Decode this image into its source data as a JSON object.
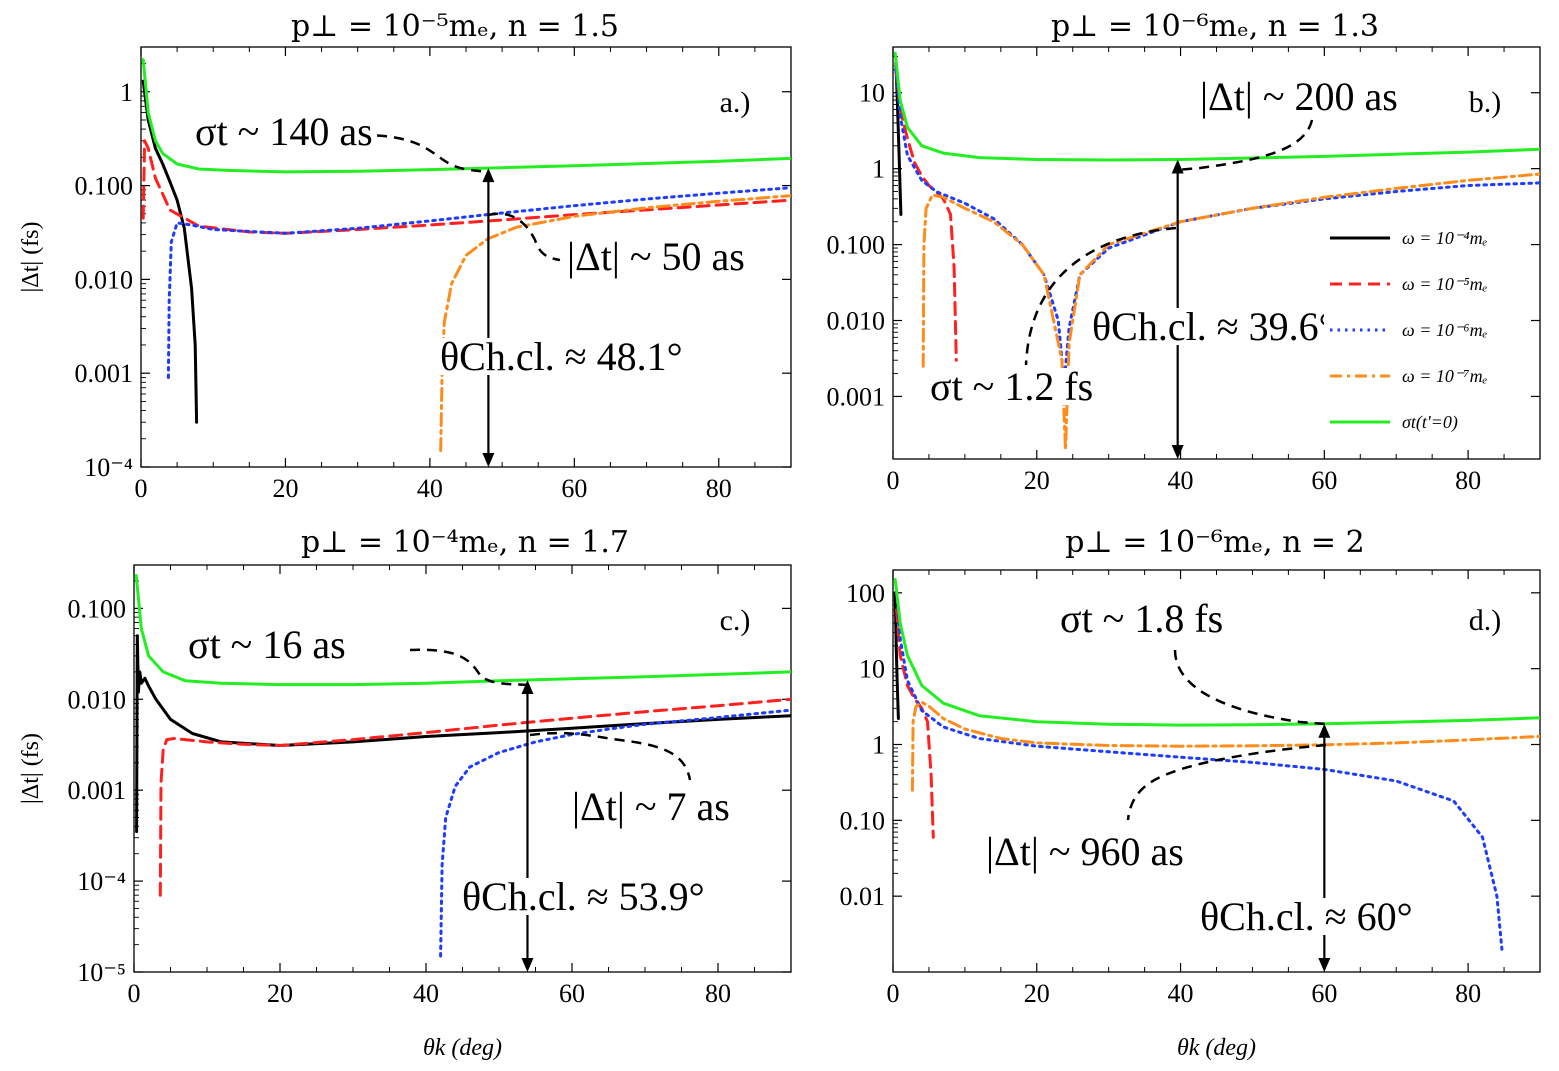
{
  "chart_data": [
    {
      "type": "line",
      "panel_label": "a.)",
      "title": "p⊥ = 10⁻⁵mₑ, n = 1.5",
      "xlabel": "",
      "ylabel": "|Δt| (fs)",
      "xlim": [
        0,
        90
      ],
      "ylim": [
        0.0001,
        3
      ],
      "yscale": "log",
      "xticks": [
        0,
        20,
        40,
        60,
        80
      ],
      "xtick_labels": [
        "0",
        "20",
        "40",
        "60",
        "80"
      ],
      "yticks": [
        0.0001,
        0.001,
        0.01,
        0.1,
        1
      ],
      "ytick_labels": [
        "10⁻⁴",
        "0.001",
        "0.010",
        "0.100",
        "1"
      ],
      "series": [
        {
          "name": "ω = 10⁻⁴mₑ",
          "color": "#000000",
          "dash": "solid",
          "x": [
            0.3,
            1,
            2,
            3,
            4,
            5,
            6,
            7,
            7.5,
            7.7
          ],
          "y": [
            1.3,
            0.5,
            0.25,
            0.17,
            0.11,
            0.07,
            0.035,
            0.008,
            0.002,
            0.0003
          ]
        },
        {
          "name": "ω = 10⁻⁵mₑ",
          "color": "#ff2020",
          "dash": "dashed",
          "x": [
            0.3,
            0.5,
            1,
            2,
            4,
            8,
            15,
            20,
            30,
            40,
            50,
            60,
            70,
            80,
            90
          ],
          "y": [
            0.045,
            0.3,
            0.25,
            0.12,
            0.055,
            0.037,
            0.032,
            0.031,
            0.034,
            0.038,
            0.043,
            0.049,
            0.055,
            0.062,
            0.07
          ]
        },
        {
          "name": "ω = 10⁻⁶mₑ",
          "color": "#1e3cff",
          "dash": "dotted",
          "x": [
            3.8,
            3.9,
            4.2,
            5,
            7,
            10,
            20,
            30,
            40,
            50,
            60,
            70,
            80,
            90
          ],
          "y": [
            0.0009,
            0.006,
            0.025,
            0.04,
            0.038,
            0.034,
            0.031,
            0.035,
            0.042,
            0.051,
            0.061,
            0.072,
            0.083,
            0.095
          ]
        },
        {
          "name": "ω = 10⁻⁷mₑ",
          "color": "#ff8c1a",
          "dash": "dashdot",
          "x": [
            41.5,
            41.7,
            42,
            43,
            45,
            48,
            52,
            60,
            70,
            80,
            90
          ],
          "y": [
            0.00015,
            0.0012,
            0.0035,
            0.009,
            0.018,
            0.027,
            0.036,
            0.047,
            0.058,
            0.068,
            0.078
          ]
        },
        {
          "name": "σt(t'=0)",
          "color": "#22ee22",
          "dash": "solid",
          "x": [
            0.3,
            1,
            2,
            3,
            5,
            8,
            12,
            20,
            30,
            40,
            50,
            60,
            70,
            80,
            90
          ],
          "y": [
            2.2,
            0.6,
            0.3,
            0.22,
            0.17,
            0.15,
            0.145,
            0.14,
            0.142,
            0.148,
            0.155,
            0.163,
            0.172,
            0.182,
            0.195
          ]
        }
      ],
      "annotations": [
        {
          "text": "σt ~ 140 as",
          "x": 17,
          "y": 0.6
        },
        {
          "text": "|Δt| ~ 50 as",
          "x": 67,
          "y": 0.018
        },
        {
          "text": "θCh.cl. ≈ 48.1°",
          "x": 57,
          "y": 0.0012
        }
      ],
      "cherenkov_angle": 48.1
    },
    {
      "type": "line",
      "panel_label": "b.)",
      "title": "p⊥ = 10⁻⁶mₑ, n = 1.3",
      "xlabel": "",
      "ylabel": "",
      "xlim": [
        0,
        90
      ],
      "ylim": [
        0.00015,
        40
      ],
      "yscale": "log",
      "xticks": [
        0,
        20,
        40,
        60,
        80
      ],
      "xtick_labels": [
        "0",
        "20",
        "40",
        "60",
        "80"
      ],
      "yticks": [
        0.001,
        0.01,
        0.1,
        1,
        10
      ],
      "ytick_labels": [
        "0.001",
        "0.010",
        "0.100",
        "1",
        "10"
      ],
      "series": [
        {
          "name": "ω = 10⁻⁴mₑ",
          "color": "#000000",
          "dash": "solid",
          "x": [
            0.4,
            0.6,
            0.8,
            1.0,
            1.1
          ],
          "y": [
            25,
            8,
            2,
            0.5,
            0.25
          ]
        },
        {
          "name": "ω = 10⁻⁵mₑ",
          "color": "#ff2020",
          "dash": "dashed",
          "x": [
            0.4,
            1,
            2,
            3,
            4,
            5,
            6,
            7,
            8,
            8.5,
            8.8
          ],
          "y": [
            20,
            6,
            2.5,
            1.2,
            0.8,
            0.6,
            0.5,
            0.4,
            0.25,
            0.05,
            0.003
          ]
        },
        {
          "name": "ω = 10⁻⁶mₑ",
          "color": "#1e3cff",
          "dash": "dotted",
          "x": [
            0.4,
            1,
            2,
            4,
            6,
            10,
            14,
            18,
            21,
            23,
            23.8,
            24.5,
            26,
            30,
            40,
            50,
            60,
            70,
            80,
            90
          ],
          "y": [
            20,
            5,
            1.5,
            0.7,
            0.5,
            0.35,
            0.22,
            0.1,
            0.04,
            0.01,
            0.0015,
            0.008,
            0.04,
            0.09,
            0.2,
            0.3,
            0.4,
            0.5,
            0.6,
            0.65
          ]
        },
        {
          "name": "ω = 10⁻⁷mₑ",
          "color": "#ff8c1a",
          "dash": "dashdot",
          "x": [
            4.2,
            4.3,
            4.6,
            5.5,
            7,
            10,
            14,
            18,
            21,
            23.5,
            24,
            24.5,
            26,
            30,
            40,
            50,
            60,
            70,
            80,
            90
          ],
          "y": [
            0.0025,
            0.1,
            0.3,
            0.45,
            0.42,
            0.3,
            0.2,
            0.1,
            0.04,
            0.003,
            0.0002,
            0.005,
            0.04,
            0.1,
            0.2,
            0.3,
            0.42,
            0.55,
            0.7,
            0.85
          ]
        },
        {
          "name": "σt(t'=0)",
          "color": "#22ee22",
          "dash": "solid",
          "x": [
            0.3,
            1,
            2,
            4,
            7,
            12,
            20,
            30,
            40,
            50,
            60,
            70,
            80,
            90
          ],
          "y": [
            33,
            8,
            3.5,
            2,
            1.6,
            1.4,
            1.32,
            1.3,
            1.32,
            1.38,
            1.45,
            1.55,
            1.65,
            1.8
          ]
        }
      ],
      "annotations": [
        {
          "text": "|Δt| ~ 200 as",
          "x": 58,
          "y": 30
        },
        {
          "text": "σt ~ 1.2 fs",
          "x": 15,
          "y": 0.0009
        },
        {
          "text": "θCh.cl. ≈ 39.6°",
          "x": 42,
          "y": 0.02
        }
      ],
      "cherenkov_angle": 39.6,
      "legend": {
        "location": "right",
        "entries": [
          "ω = 10⁻⁴mₑ",
          "ω = 10⁻⁵mₑ",
          "ω = 10⁻⁶mₑ",
          "ω = 10⁻⁷mₑ",
          "σt(t'=0)"
        ]
      }
    },
    {
      "type": "line",
      "panel_label": "c.)",
      "title": "p⊥ = 10⁻⁴mₑ, n = 1.7",
      "xlabel": "θk (deg)",
      "ylabel": "|Δt| (fs)",
      "xlim": [
        0,
        90
      ],
      "ylim": [
        1e-05,
        0.3
      ],
      "yscale": "log",
      "xticks": [
        0,
        20,
        40,
        60,
        80
      ],
      "xtick_labels": [
        "0",
        "20",
        "40",
        "60",
        "80"
      ],
      "yticks": [
        1e-05,
        0.0001,
        0.001,
        0.01,
        0.1
      ],
      "ytick_labels": [
        "10⁻⁵",
        "10⁻⁴",
        "0.001",
        "0.010",
        "0.100"
      ],
      "series": [
        {
          "name": "ω = 10⁻⁴mₑ",
          "color": "#000000",
          "dash": "solid",
          "x": [
            0.35,
            0.45,
            0.6,
            0.8,
            1,
            1.5,
            2,
            3,
            5,
            8,
            12,
            20,
            30,
            40,
            50,
            60,
            70,
            80,
            90
          ],
          "y": [
            0.00035,
            0.05,
            0.012,
            0.02,
            0.015,
            0.017,
            0.014,
            0.01,
            0.006,
            0.0042,
            0.0034,
            0.0031,
            0.0034,
            0.0039,
            0.0043,
            0.0048,
            0.0054,
            0.006,
            0.0066
          ]
        },
        {
          "name": "ω = 10⁻⁵mₑ",
          "color": "#ff2020",
          "dash": "dashed",
          "x": [
            3.6,
            3.7,
            4,
            4.5,
            5.5,
            7,
            10,
            15,
            20,
            30,
            40,
            50,
            60,
            70,
            80,
            90
          ],
          "y": [
            7e-05,
            0.0012,
            0.0028,
            0.0036,
            0.0037,
            0.0036,
            0.0034,
            0.0032,
            0.0031,
            0.0036,
            0.0043,
            0.0052,
            0.0062,
            0.0073,
            0.0085,
            0.01
          ]
        },
        {
          "name": "ω = 10⁻⁶mₑ",
          "color": "#1e3cff",
          "dash": "dotted",
          "x": [
            42,
            42.2,
            42.7,
            44,
            46,
            50,
            55,
            60,
            65,
            70,
            80,
            90
          ],
          "y": [
            1.5e-05,
            0.00015,
            0.0005,
            0.0011,
            0.0018,
            0.0026,
            0.0034,
            0.0041,
            0.0047,
            0.0053,
            0.0063,
            0.0076
          ]
        },
        {
          "name": "σt(t'=0)",
          "color": "#22ee22",
          "dash": "solid",
          "x": [
            0.3,
            1,
            2,
            4,
            7,
            12,
            20,
            30,
            40,
            50,
            60,
            70,
            80,
            90
          ],
          "y": [
            0.23,
            0.06,
            0.03,
            0.02,
            0.016,
            0.015,
            0.0145,
            0.0145,
            0.015,
            0.016,
            0.0168,
            0.0177,
            0.0188,
            0.02
          ]
        }
      ],
      "annotations": [
        {
          "text": "σt ~ 16 as",
          "x": 18,
          "y": 0.03
        },
        {
          "text": "|Δt| ~ 7 as",
          "x": 71,
          "y": 0.0013
        },
        {
          "text": "θCh.cl. ≈ 53.9°",
          "x": 61,
          "y": 4e-05
        }
      ],
      "cherenkov_angle": 53.9
    },
    {
      "type": "line",
      "panel_label": "d.)",
      "title": "p⊥ = 10⁻⁶mₑ, n = 2",
      "xlabel": "θk (deg)",
      "ylabel": "",
      "xlim": [
        0,
        90
      ],
      "ylim": [
        0.001,
        200
      ],
      "yscale": "log",
      "xticks": [
        0,
        20,
        40,
        60,
        80
      ],
      "xtick_labels": [
        "0",
        "20",
        "40",
        "60",
        "80"
      ],
      "yticks": [
        0.01,
        0.1,
        1,
        10,
        100
      ],
      "ytick_labels": [
        "0.01",
        "0.10",
        "1",
        "10",
        "100"
      ],
      "series": [
        {
          "name": "ω = 10⁻⁴mₑ",
          "color": "#000000",
          "dash": "solid",
          "x": [
            0.3,
            0.45,
            0.6,
            0.75
          ],
          "y": [
            100,
            20,
            6,
            2.2
          ]
        },
        {
          "name": "ω = 10⁻⁵mₑ",
          "color": "#ff2020",
          "dash": "dashed",
          "x": [
            0.5,
            1,
            2,
            3,
            4,
            4.8,
            5.3,
            5.6
          ],
          "y": [
            60,
            15,
            6,
            4,
            3,
            2,
            0.4,
            0.06
          ]
        },
        {
          "name": "ω = 10⁻⁶mₑ",
          "color": "#1e3cff",
          "dash": "dotted",
          "x": [
            0.5,
            1,
            2,
            4,
            7,
            12,
            20,
            30,
            40,
            50,
            60,
            70,
            78,
            82,
            84,
            84.7
          ],
          "y": [
            100,
            25,
            7,
            2.8,
            1.7,
            1.2,
            0.95,
            0.8,
            0.68,
            0.58,
            0.47,
            0.33,
            0.18,
            0.06,
            0.01,
            0.002
          ]
        },
        {
          "name": "ω = 10⁻⁷mₑ",
          "color": "#ff8c1a",
          "dash": "dashdot",
          "x": [
            2.7,
            2.8,
            3.2,
            4,
            5,
            7,
            10,
            15,
            20,
            30,
            40,
            50,
            60,
            70,
            80,
            90
          ],
          "y": [
            0.25,
            2,
            3.2,
            3.6,
            3.2,
            2.2,
            1.6,
            1.2,
            1.05,
            0.97,
            0.95,
            0.96,
            0.99,
            1.05,
            1.15,
            1.28
          ]
        },
        {
          "name": "σt(t'=0)",
          "color": "#22ee22",
          "dash": "solid",
          "x": [
            0.3,
            1,
            2,
            4,
            7,
            12,
            20,
            30,
            40,
            50,
            60,
            70,
            80,
            90
          ],
          "y": [
            150,
            40,
            15,
            6,
            3.5,
            2.4,
            2.0,
            1.85,
            1.8,
            1.82,
            1.88,
            1.97,
            2.08,
            2.25
          ]
        }
      ],
      "annotations": [
        {
          "text": "σt ~ 1.8 fs",
          "x": 36,
          "y": 90
        },
        {
          "text": "|Δt| ~ 960 as",
          "x": 31,
          "y": 0.09
        },
        {
          "text": "θCh.cl. ≈ 60°",
          "x": 56,
          "y": 0.008
        }
      ],
      "cherenkov_angle": 60
    }
  ]
}
